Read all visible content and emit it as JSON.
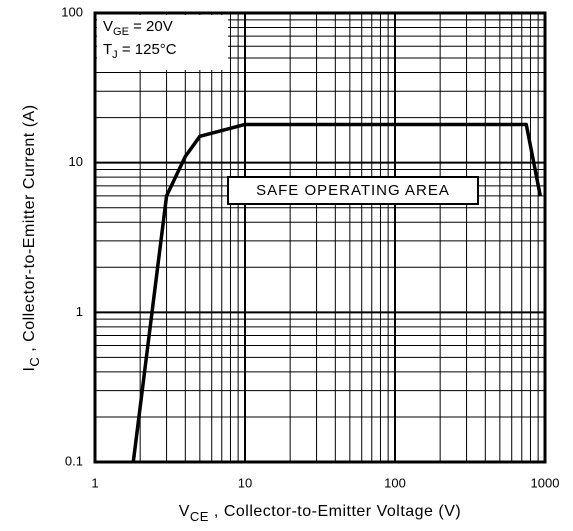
{
  "chart_data": {
    "type": "line",
    "x": [
      1.8,
      3,
      4,
      5,
      10,
      750,
      930
    ],
    "series": [
      {
        "color": "#000000",
        "values": [
          0.1,
          6,
          11,
          15,
          18,
          18,
          6
        ]
      }
    ],
    "xlim": [
      1,
      1000
    ],
    "ylim": [
      0.1,
      100
    ],
    "xticks": [
      1,
      10,
      100,
      1000
    ],
    "yticks": [
      0.1,
      1,
      10,
      100
    ],
    "xscale": "log",
    "yscale": "log",
    "grid": true,
    "minor_grid": true,
    "xlabel": {
      "main": "V",
      "sub": "CE",
      "rest": " , Collector-to-Emitter Voltage (V)"
    },
    "ylabel": {
      "main": "I",
      "sub": "C",
      "rest": " , Collector-to-Emitter Current (A)"
    },
    "conditions": [
      {
        "main": "V",
        "sub": "GE",
        "rest": " = 20V"
      },
      {
        "main": "T",
        "sub": "J",
        "rest": "  = 125°C"
      }
    ],
    "annotation": "SAFE OPERATING AREA"
  }
}
